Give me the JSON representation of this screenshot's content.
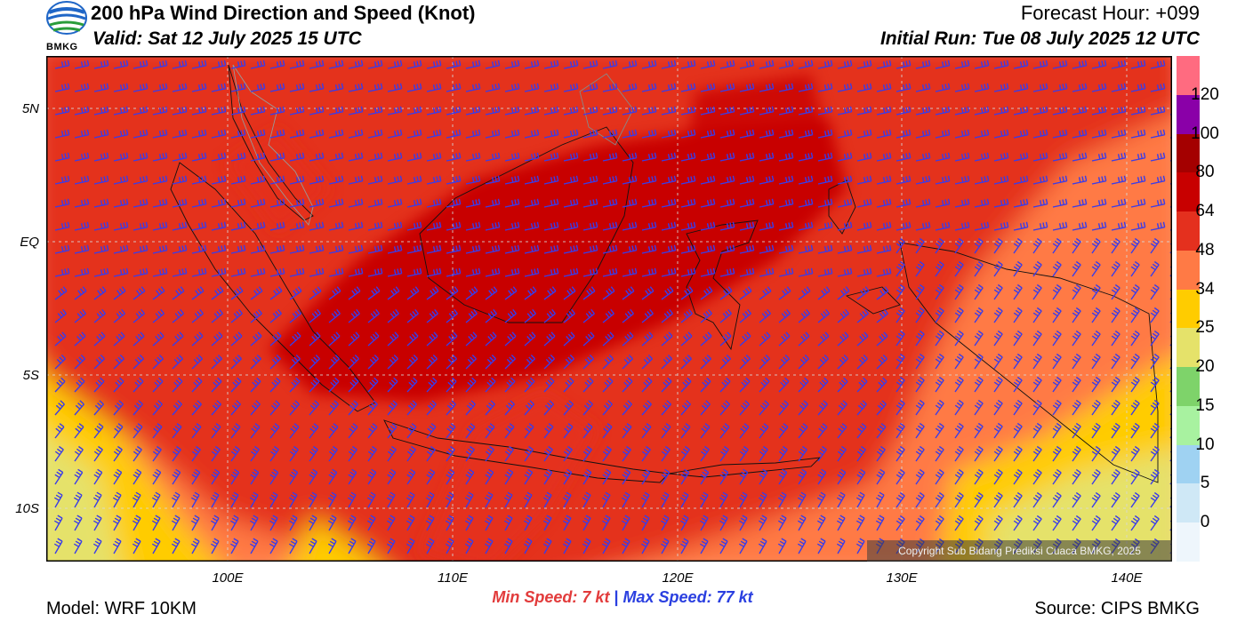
{
  "header": {
    "title": "200 hPa Wind Direction and Speed (Knot)",
    "valid": "Valid: Sat 12 July 2025 15 UTC",
    "forecast_hour": "Forecast Hour: +099",
    "initial_run": "Initial Run: Tue 08 July 2025 12 UTC",
    "logo_text": "BMKG"
  },
  "map": {
    "lat_labels": [
      "5N",
      "EQ",
      "5S",
      "10S"
    ],
    "lon_labels": [
      "100E",
      "110E",
      "120E",
      "130E",
      "140E"
    ],
    "copyright": "Copyright Sub Bidang Prediksi Cuaca BMKG, 2025",
    "barb_color": "#3a3ce8",
    "wind_from": "east-southeast"
  },
  "legend": {
    "unit": "Knot",
    "labels": [
      "120",
      "100",
      "80",
      "64",
      "48",
      "34",
      "25",
      "20",
      "15",
      "10",
      "5",
      "0"
    ],
    "colors": [
      "#ff6b80",
      "#8a00a8",
      "#a40000",
      "#c80000",
      "#e4301e",
      "#ff7a45",
      "#ffcc00",
      "#e5e26a",
      "#7ed36a",
      "#a8f2a0",
      "#9fd2f2",
      "#cfe8f6",
      "#eef6fc"
    ]
  },
  "stats": {
    "min_label": "Min Speed:",
    "min_value": "7 kt",
    "separator": "|",
    "max_label": "Max Speed:",
    "max_value": "77 kt"
  },
  "footer": {
    "model": "Model: WRF 10KM",
    "source": "Source: CIPS BMKG"
  }
}
